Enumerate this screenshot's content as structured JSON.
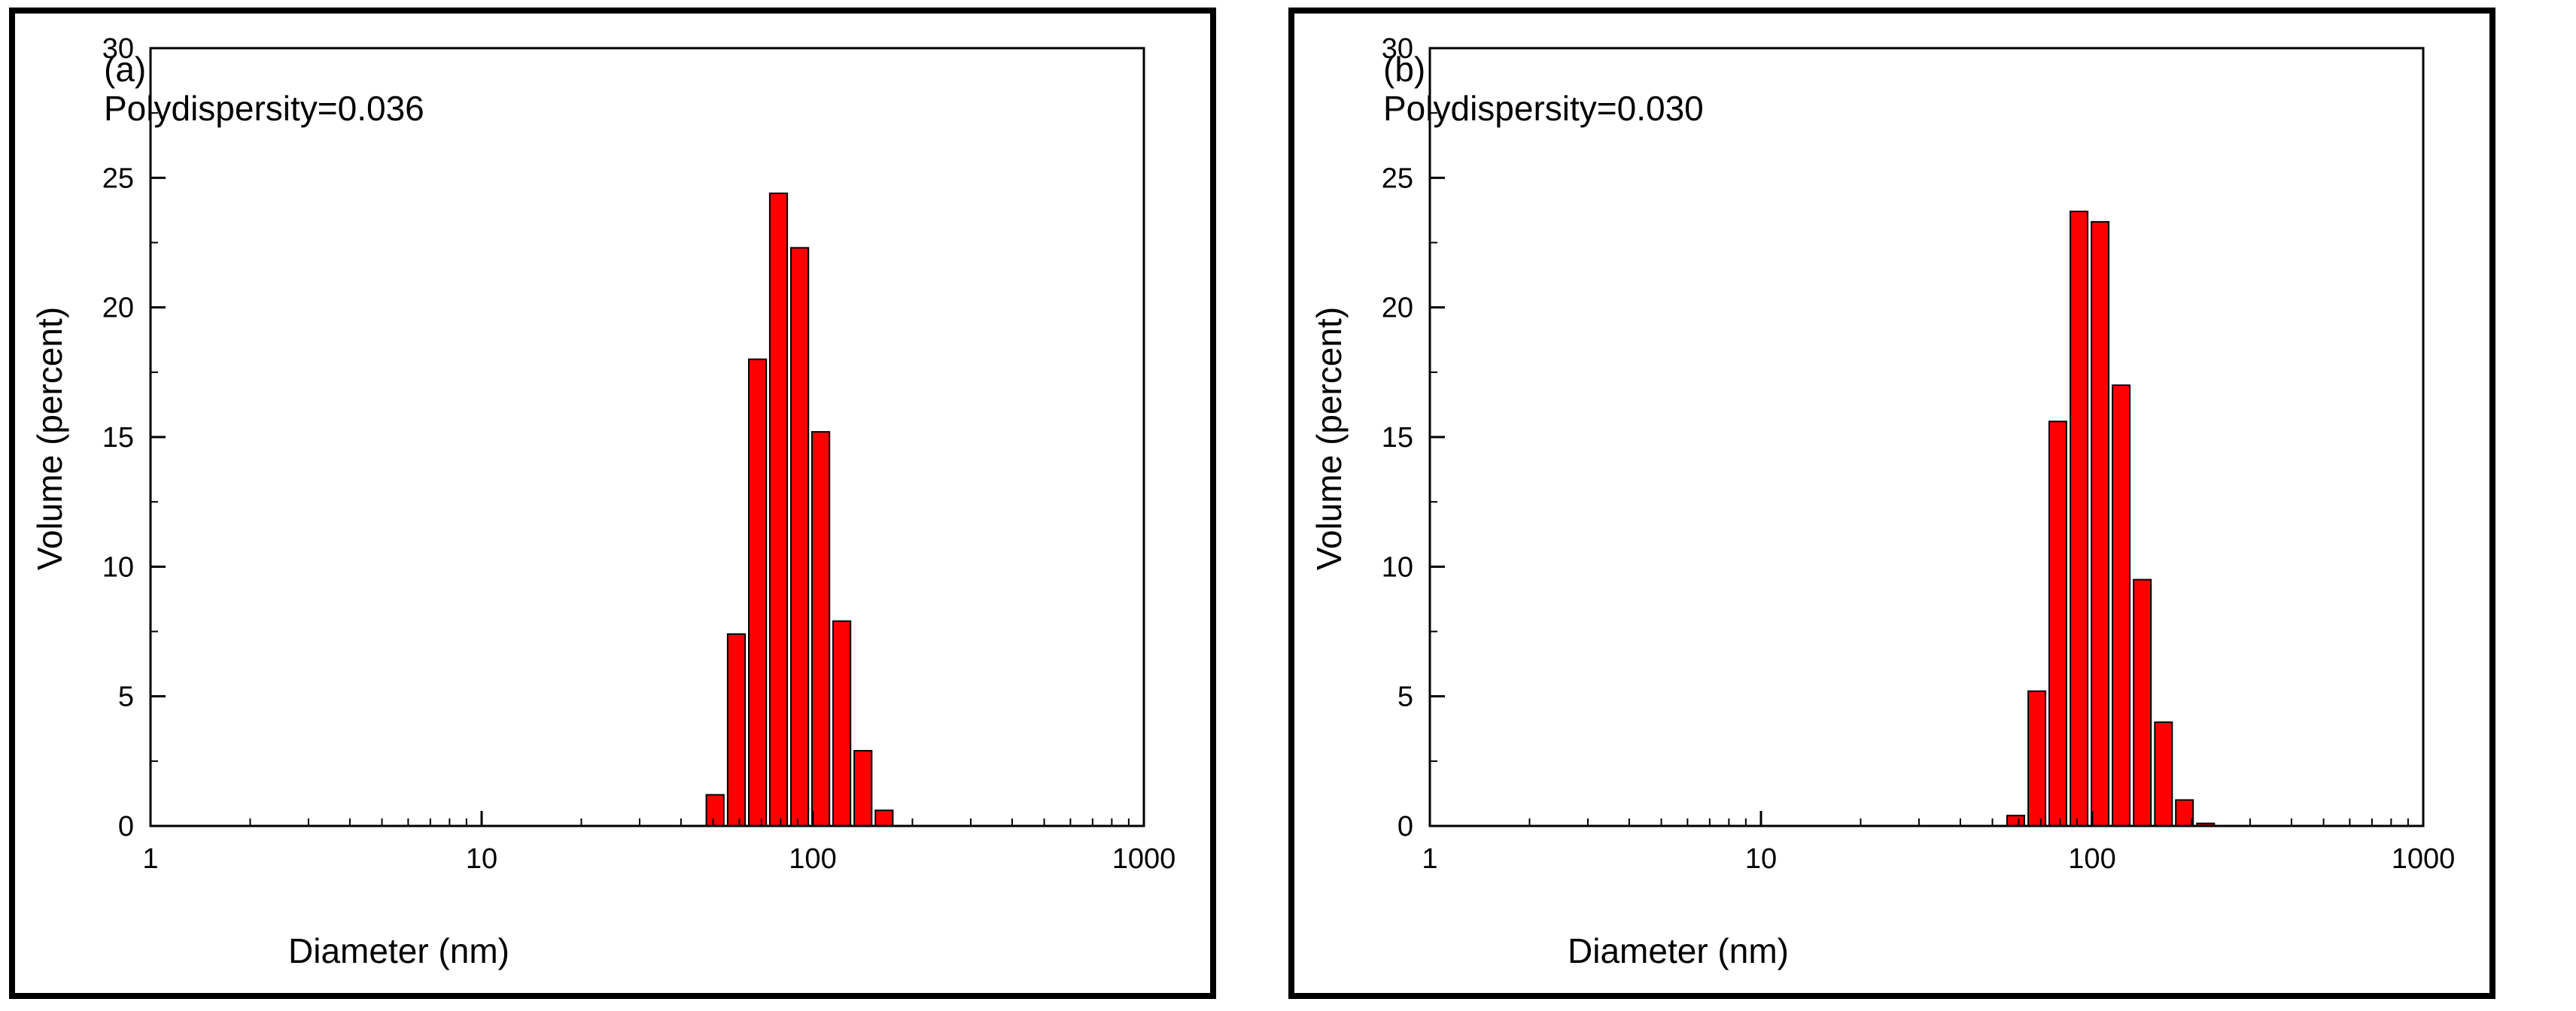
{
  "chart_data": [
    {
      "type": "bar",
      "panel": "a",
      "annotations": [
        "(a)",
        "Polydispersity=0.036"
      ],
      "xlabel": "Diameter (nm)",
      "ylabel": "Volume (percent)",
      "xscale": "log",
      "xlim": [
        1,
        1000
      ],
      "ylim": [
        0,
        30
      ],
      "xticks": [
        1,
        10,
        100,
        1000
      ],
      "xtick_labels": [
        "1",
        "10",
        "100",
        "1000"
      ],
      "yticks": [
        0,
        5,
        10,
        15,
        20,
        25,
        30
      ],
      "ytick_labels": [
        "0",
        "5",
        "10",
        "15",
        "20",
        "25",
        "30"
      ],
      "grid": false,
      "bar_color": "#ff0000",
      "bars": [
        {
          "x": 50.7,
          "y": 1.2
        },
        {
          "x": 58.8,
          "y": 7.4
        },
        {
          "x": 68.1,
          "y": 18.0
        },
        {
          "x": 78.8,
          "y": 24.4
        },
        {
          "x": 91.3,
          "y": 22.3
        },
        {
          "x": 105.7,
          "y": 15.2
        },
        {
          "x": 122.4,
          "y": 7.9
        },
        {
          "x": 141.8,
          "y": 2.9
        },
        {
          "x": 164.2,
          "y": 0.6
        }
      ]
    },
    {
      "type": "bar",
      "panel": "b",
      "annotations": [
        "(b)",
        "Polydispersity=0.030"
      ],
      "xlabel": "Diameter (nm)",
      "ylabel": "Volume (percent)",
      "xscale": "log",
      "xlim": [
        1,
        1000
      ],
      "ylim": [
        0,
        30
      ],
      "xticks": [
        1,
        10,
        100,
        1000
      ],
      "xtick_labels": [
        "1",
        "10",
        "100",
        "1000"
      ],
      "yticks": [
        0,
        5,
        10,
        15,
        20,
        25,
        30
      ],
      "ytick_labels": [
        "0",
        "5",
        "10",
        "15",
        "20",
        "25",
        "30"
      ],
      "grid": false,
      "bar_color": "#ff0000",
      "bars": [
        {
          "x": 58.8,
          "y": 0.4
        },
        {
          "x": 68.1,
          "y": 5.2
        },
        {
          "x": 78.8,
          "y": 15.6
        },
        {
          "x": 91.3,
          "y": 23.7
        },
        {
          "x": 105.7,
          "y": 23.3
        },
        {
          "x": 122.4,
          "y": 17.0
        },
        {
          "x": 141.8,
          "y": 9.5
        },
        {
          "x": 164.2,
          "y": 4.0
        },
        {
          "x": 190.1,
          "y": 1.0
        },
        {
          "x": 220.2,
          "y": 0.1
        }
      ]
    }
  ]
}
